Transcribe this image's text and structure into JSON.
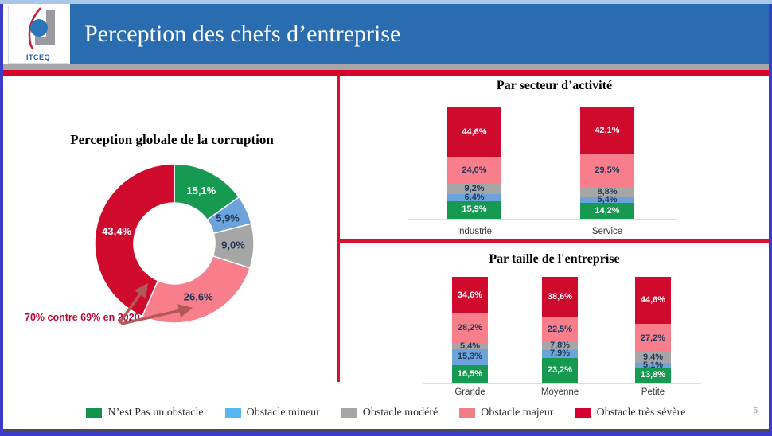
{
  "header": {
    "title": "Perception des chefs d’entreprise",
    "logo_text": "ITCEQ"
  },
  "page_number": "6",
  "legend": {
    "items": [
      {
        "label": "N’est Pas un obstacle",
        "color": "#12934b"
      },
      {
        "label": "Obstacle  mineur",
        "color": "#57b5f2"
      },
      {
        "label": "Obstacle  modéré",
        "color": "#a6a6a6"
      },
      {
        "label": "Obstacle  majeur",
        "color": "#ef7e86"
      },
      {
        "label": "Obstacle très  sévère",
        "color": "#d40032"
      }
    ]
  },
  "chart_data": [
    {
      "type": "donut",
      "title": "Perception globale de la corruption",
      "annotation": "70% contre 69% en 2020",
      "slices": [
        {
          "name": "N'est Pas un obstacle",
          "value": 15.1,
          "label": "15,1%",
          "color": "#169a52",
          "label_color": "#ffffff"
        },
        {
          "name": "Obstacle mineur",
          "value": 5.9,
          "label": "5,9%",
          "color": "#6ba3da",
          "label_color": "#203a5c"
        },
        {
          "name": "Obstacle modéré",
          "value": 9.0,
          "label": "9,0%",
          "color": "#a6a6a6",
          "label_color": "#203a5c"
        },
        {
          "name": "Obstacle majeur",
          "value": 26.6,
          "label": "26,6%",
          "color": "#f87e8b",
          "label_color": "#203a5c"
        },
        {
          "name": "Obstacle très sévère",
          "value": 43.4,
          "label": "43,4%",
          "color": "#cf0a2c",
          "label_color": "#ffffff"
        }
      ]
    },
    {
      "type": "stacked-bar",
      "title": "Par secteur d’activité",
      "categories": [
        "Industrie",
        "Service"
      ],
      "ylim": [
        0,
        100
      ],
      "series": [
        {
          "name": "N'est Pas un obstacle",
          "color": "#169a52",
          "label_color": "#ffffff",
          "values": [
            15.9,
            14.2
          ],
          "labels": [
            "15,9%",
            "14,2%"
          ]
        },
        {
          "name": "Obstacle mineur",
          "color": "#6ba3da",
          "label_color": "#203a5c",
          "values": [
            6.4,
            5.4
          ],
          "labels": [
            "6,4%",
            "5,4%"
          ]
        },
        {
          "name": "Obstacle modéré",
          "color": "#a6a6a6",
          "label_color": "#203a5c",
          "values": [
            9.2,
            8.8
          ],
          "labels": [
            "9,2%",
            "8,8%"
          ]
        },
        {
          "name": "Obstacle majeur",
          "color": "#f87e8b",
          "label_color": "#203a5c",
          "values": [
            24.0,
            29.5
          ],
          "labels": [
            "24,0%",
            "29,5%"
          ]
        },
        {
          "name": "Obstacle très sévère",
          "color": "#cf0a2c",
          "label_color": "#ffffff",
          "values": [
            44.6,
            42.1
          ],
          "labels": [
            "44,6%",
            "42,1%"
          ]
        }
      ]
    },
    {
      "type": "stacked-bar",
      "title": "Par taille de l'entreprise",
      "categories": [
        "Grande",
        "Moyenne",
        "Petite"
      ],
      "ylim": [
        0,
        100
      ],
      "series": [
        {
          "name": "N'est Pas un obstacle",
          "color": "#169a52",
          "label_color": "#ffffff",
          "values": [
            16.5,
            23.2,
            13.8
          ],
          "labels": [
            "16,5%",
            "23,2%",
            "13,8%"
          ]
        },
        {
          "name": "Obstacle mineur",
          "color": "#6ba3da",
          "label_color": "#203a5c",
          "values": [
            15.3,
            7.9,
            5.1
          ],
          "labels": [
            "15,3%",
            "7,9%",
            "5,1%"
          ]
        },
        {
          "name": "Obstacle modéré",
          "color": "#a6a6a6",
          "label_color": "#203a5c",
          "values": [
            5.4,
            7.8,
            9.4
          ],
          "labels": [
            "5,4%",
            "7,8%",
            "9,4%"
          ]
        },
        {
          "name": "Obstacle majeur",
          "color": "#f87e8b",
          "label_color": "#203a5c",
          "values": [
            28.2,
            22.5,
            27.2
          ],
          "labels": [
            "28,2%",
            "22,5%",
            "27,2%"
          ]
        },
        {
          "name": "Obstacle très sévère",
          "color": "#cf0a2c",
          "label_color": "#ffffff",
          "values": [
            34.6,
            38.6,
            44.6
          ],
          "labels": [
            "34,6%",
            "38,6%",
            "44,6%"
          ]
        }
      ]
    }
  ]
}
